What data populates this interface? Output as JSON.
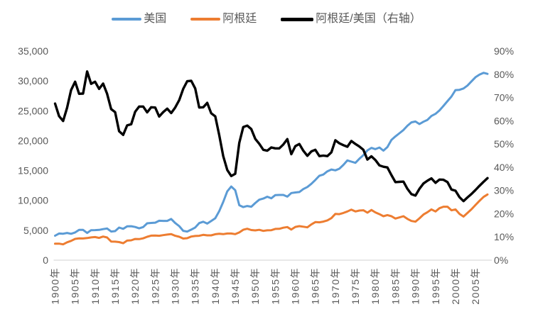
{
  "style": {
    "background": "#FFFFFF",
    "text_color": "#595959",
    "axis_line_color": "#D9D9D9",
    "us_color": "#5B9BD5",
    "argentina_color": "#ED7D31",
    "ratio_color": "#000000"
  },
  "chart_data": {
    "type": "line",
    "title": "",
    "grid": false,
    "legend_position": "top",
    "x": [
      1900,
      1901,
      1902,
      1903,
      1904,
      1905,
      1906,
      1907,
      1908,
      1909,
      1910,
      1911,
      1912,
      1913,
      1914,
      1915,
      1916,
      1917,
      1918,
      1919,
      1920,
      1921,
      1922,
      1923,
      1924,
      1925,
      1926,
      1927,
      1928,
      1929,
      1930,
      1931,
      1932,
      1933,
      1934,
      1935,
      1936,
      1937,
      1938,
      1939,
      1940,
      1941,
      1942,
      1943,
      1944,
      1945,
      1946,
      1947,
      1948,
      1949,
      1950,
      1951,
      1952,
      1953,
      1954,
      1955,
      1956,
      1957,
      1958,
      1959,
      1960,
      1961,
      1962,
      1963,
      1964,
      1965,
      1966,
      1967,
      1968,
      1969,
      1970,
      1971,
      1972,
      1973,
      1974,
      1975,
      1976,
      1977,
      1978,
      1979,
      1980,
      1981,
      1982,
      1983,
      1984,
      1985,
      1986,
      1987,
      1988,
      1989,
      1990,
      1991,
      1992,
      1993,
      1994,
      1995,
      1996,
      1997,
      1998,
      1999,
      2000,
      2001,
      2002,
      2003,
      2004,
      2005,
      2006,
      2007,
      2008
    ],
    "x_tick_labels": [
      "1900年",
      "1905年",
      "1910年",
      "1915年",
      "1920年",
      "1925年",
      "1930年",
      "1935年",
      "1940年",
      "1945年",
      "1950年",
      "1955年",
      "1960年",
      "1965年",
      "1970年",
      "1975年",
      "1980年",
      "1985年",
      "1990年",
      "1995年",
      "2000年",
      "2005年"
    ],
    "left_axis": {
      "min": 0,
      "max": 35000,
      "step": 5000,
      "tick_labels": [
        "0",
        "5,000",
        "10,000",
        "15,000",
        "20,000",
        "25,000",
        "30,000",
        "35,000"
      ]
    },
    "right_axis": {
      "min": 0,
      "max": 90,
      "step": 10,
      "tick_labels": [
        "0%",
        "10%",
        "20%",
        "30%",
        "40%",
        "50%",
        "60%",
        "70%",
        "80%",
        "90%"
      ]
    },
    "series": [
      {
        "name": "美国",
        "axis": "left",
        "color": "#5B9BD5",
        "values": [
          4091,
          4464,
          4421,
          4551,
          4410,
          4642,
          5079,
          5065,
          4561,
          5017,
          5036,
          5063,
          5201,
          5301,
          4799,
          4864,
          5459,
          5248,
          5659,
          5680,
          5552,
          5323,
          5540,
          6164,
          6233,
          6282,
          6602,
          6576,
          6569,
          6899,
          6213,
          5691,
          4908,
          4777,
          5114,
          5467,
          6204,
          6430,
          6126,
          6561,
          7010,
          8206,
          9741,
          11518,
          12333,
          11709,
          9197,
          8886,
          9065,
          8944,
          9561,
          10116,
          10316,
          10613,
          10359,
          10897,
          10914,
          10920,
          10631,
          11230,
          11328,
          11402,
          11905,
          12242,
          12773,
          13419,
          14134,
          14330,
          14863,
          15179,
          15030,
          15304,
          15944,
          16689,
          16491,
          16284,
          16975,
          17567,
          18373,
          18789,
          18577,
          18856,
          18325,
          18920,
          20123,
          20717,
          21236,
          21788,
          22499,
          23059,
          23201,
          22785,
          23169,
          23477,
          24130,
          24484,
          25066,
          25819,
          26619,
          27395,
          28467,
          28512,
          28740,
          29219,
          29928,
          30627,
          31049,
          31357,
          31178
        ]
      },
      {
        "name": "阿根廷",
        "axis": "left",
        "color": "#ED7D31",
        "values": [
          2756,
          2769,
          2648,
          2987,
          3226,
          3564,
          3637,
          3629,
          3703,
          3810,
          3870,
          3730,
          3950,
          3797,
          3120,
          3100,
          3030,
          2830,
          3280,
          3320,
          3550,
          3520,
          3660,
          3920,
          4100,
          4130,
          4083,
          4190,
          4280,
          4367,
          4080,
          3920,
          3618,
          3680,
          3950,
          4042,
          4077,
          4230,
          4150,
          4148,
          4342,
          4412,
          4360,
          4466,
          4466,
          4356,
          4640,
          5089,
          5252,
          5047,
          4987,
          5073,
          4900,
          5000,
          5022,
          5237,
          5245,
          5438,
          5538,
          5125,
          5559,
          5700,
          5605,
          5492,
          5979,
          6371,
          6337,
          6452,
          6652,
          7037,
          7750,
          7700,
          7900,
          8150,
          8460,
          8150,
          8300,
          8350,
          7950,
          8400,
          8000,
          7700,
          7360,
          7550,
          7360,
          6960,
          7160,
          7360,
          6900,
          6560,
          6440,
          7000,
          7640,
          8030,
          8500,
          8150,
          8700,
          8940,
          8940,
          8340,
          8500,
          7730,
          7300,
          7900,
          8530,
          9240,
          9930,
          10580,
          10995
        ]
      },
      {
        "name": "阿根廷/美国（右轴）",
        "axis": "right",
        "color": "#000000",
        "values": [
          67.4,
          62.0,
          59.9,
          65.6,
          73.2,
          76.8,
          71.6,
          71.7,
          81.2,
          75.9,
          76.8,
          73.7,
          76.0,
          71.6,
          65.0,
          63.7,
          55.5,
          53.9,
          58.0,
          58.5,
          63.9,
          66.1,
          66.1,
          63.6,
          65.8,
          65.7,
          61.8,
          63.7,
          65.2,
          63.3,
          65.7,
          68.9,
          73.7,
          77.0,
          77.2,
          73.9,
          65.7,
          65.8,
          67.7,
          63.2,
          61.9,
          53.8,
          44.8,
          38.8,
          36.2,
          37.2,
          50.5,
          57.3,
          57.9,
          56.4,
          52.2,
          50.1,
          47.5,
          47.1,
          48.5,
          48.1,
          48.1,
          49.8,
          52.1,
          45.6,
          49.1,
          50.0,
          47.1,
          44.9,
          46.8,
          47.5,
          44.8,
          45.0,
          44.8,
          46.4,
          51.6,
          50.3,
          49.5,
          48.8,
          51.3,
          50.0,
          48.9,
          47.5,
          43.3,
          44.7,
          43.1,
          40.8,
          40.2,
          39.9,
          36.6,
          33.6,
          33.7,
          33.8,
          30.7,
          28.4,
          27.8,
          30.7,
          33.0,
          34.2,
          35.2,
          33.3,
          34.7,
          34.6,
          33.6,
          30.4,
          29.9,
          27.1,
          25.4,
          27.0,
          28.5,
          30.2,
          32.0,
          33.7,
          35.3
        ]
      }
    ]
  }
}
